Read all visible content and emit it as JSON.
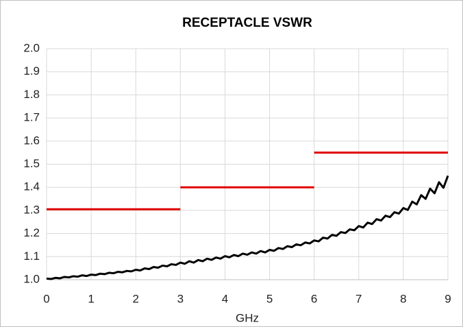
{
  "chart_data": {
    "type": "line",
    "title": "RECEPTACLE VSWR",
    "x_label": "GHz",
    "xlim": [
      0,
      9
    ],
    "xticks": [
      0,
      1,
      2,
      3,
      4,
      5,
      6,
      7,
      8,
      9
    ],
    "ylim": [
      1,
      2
    ],
    "yticks": [
      {
        "value": 1,
        "label": "1.0"
      },
      1.1,
      1.2,
      1.3,
      1.4,
      1.5,
      1.6,
      1.7,
      1.8,
      1.9,
      {
        "value": 2,
        "label": "2.0"
      }
    ],
    "grid": true,
    "series": [
      {
        "color": "#e00000",
        "x": [
          0,
          3,
          3,
          3,
          6,
          6,
          6,
          9
        ],
        "values": [
          1.305,
          1.305,
          null,
          1.4,
          1.4,
          null,
          1.55,
          1.55
        ]
      },
      {
        "color": "#000000",
        "x": [
          0,
          0.1,
          0.2,
          0.3,
          0.4,
          0.5,
          0.6,
          0.7,
          0.8,
          0.9,
          1,
          1.1,
          1.2,
          1.3,
          1.4,
          1.5,
          1.6,
          1.7,
          1.8,
          1.9,
          2,
          2.1,
          2.2,
          2.3,
          2.4,
          2.5,
          2.6,
          2.7,
          2.8,
          2.9,
          3,
          3.1,
          3.2,
          3.3,
          3.4,
          3.5,
          3.6,
          3.7,
          3.8,
          3.9,
          4,
          4.1,
          4.2,
          4.3,
          4.4,
          4.5,
          4.6,
          4.7,
          4.8,
          4.9,
          5,
          5.1,
          5.2,
          5.3,
          5.4,
          5.5,
          5.6,
          5.7,
          5.8,
          5.9,
          6,
          6.1,
          6.2,
          6.3,
          6.4,
          6.5,
          6.6,
          6.7,
          6.8,
          6.9,
          7,
          7.1,
          7.2,
          7.3,
          7.4,
          7.5,
          7.6,
          7.7,
          7.8,
          7.9,
          8,
          8.1,
          8.2,
          8.3,
          8.4,
          8.5,
          8.6,
          8.7,
          8.8,
          8.9,
          9
        ],
        "values": [
          1.005,
          1.003,
          1.008,
          1.006,
          1.012,
          1.01,
          1.015,
          1.013,
          1.019,
          1.016,
          1.022,
          1.02,
          1.026,
          1.024,
          1.03,
          1.028,
          1.034,
          1.032,
          1.038,
          1.036,
          1.043,
          1.04,
          1.049,
          1.046,
          1.055,
          1.052,
          1.061,
          1.058,
          1.067,
          1.064,
          1.074,
          1.069,
          1.08,
          1.074,
          1.085,
          1.08,
          1.091,
          1.086,
          1.096,
          1.091,
          1.102,
          1.097,
          1.107,
          1.102,
          1.113,
          1.108,
          1.118,
          1.113,
          1.124,
          1.118,
          1.129,
          1.125,
          1.137,
          1.133,
          1.145,
          1.141,
          1.153,
          1.149,
          1.161,
          1.157,
          1.17,
          1.166,
          1.182,
          1.178,
          1.194,
          1.19,
          1.206,
          1.202,
          1.218,
          1.214,
          1.232,
          1.226,
          1.247,
          1.241,
          1.262,
          1.256,
          1.277,
          1.271,
          1.292,
          1.286,
          1.31,
          1.302,
          1.338,
          1.326,
          1.366,
          1.35,
          1.394,
          1.374,
          1.422,
          1.398,
          1.45
        ]
      }
    ]
  }
}
